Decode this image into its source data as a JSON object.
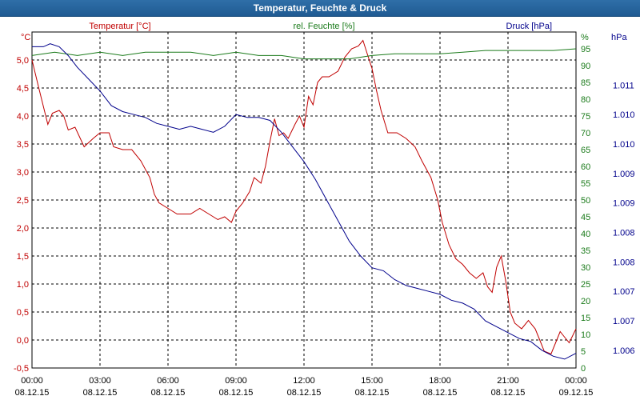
{
  "window": {
    "title": "Temperatur, Feuchte & Druck"
  },
  "colors": {
    "temperature": "#c00000",
    "humidity": "#1a7a1a",
    "pressure": "#00008b",
    "grid": "#000000"
  },
  "chart_data": {
    "type": "line",
    "title": "Temperatur, Feuchte & Druck",
    "legend": [
      {
        "key": "temperature",
        "label": "Temperatur [°C]"
      },
      {
        "key": "humidity",
        "label": "rel. Feuchte [%]"
      },
      {
        "key": "pressure",
        "label": "Druck [hPa]"
      }
    ],
    "axes": {
      "left": {
        "unit": "°C",
        "min": -0.5,
        "max": 5.5,
        "ticks": [
          "-0,5",
          "0,0",
          "0,5",
          "1,0",
          "1,5",
          "2,0",
          "2,5",
          "3,0",
          "3,5",
          "4,0",
          "4,5",
          "5,0"
        ],
        "tick_values": [
          -0.5,
          0,
          0.5,
          1,
          1.5,
          2,
          2.5,
          3,
          3.5,
          4,
          4.5,
          5
        ]
      },
      "right_humidity": {
        "unit": "%",
        "min": 0,
        "max": 100,
        "ticks": [
          "0",
          "5",
          "10",
          "15",
          "20",
          "25",
          "30",
          "35",
          "40",
          "45",
          "50",
          "55",
          "60",
          "65",
          "70",
          "75",
          "80",
          "85",
          "90",
          "95"
        ],
        "tick_values": [
          0,
          5,
          10,
          15,
          20,
          25,
          30,
          35,
          40,
          45,
          50,
          55,
          60,
          65,
          70,
          75,
          80,
          85,
          90,
          95
        ]
      },
      "right_pressure": {
        "unit": "hPa",
        "min": 1005.7,
        "max": 1011.4,
        "ticks": [
          "1.006",
          "1.007",
          "1.007",
          "1.008",
          "1.008",
          "1.009",
          "1.009",
          "1.010",
          "1.010",
          "1.011"
        ],
        "tick_values": [
          1006.0,
          1006.5,
          1007.0,
          1007.5,
          1008.0,
          1008.5,
          1009.0,
          1009.5,
          1010.0,
          1010.5
        ]
      },
      "x": {
        "min": 0,
        "max": 24,
        "ticks": [
          {
            "time": "00:00",
            "date": "08.12.15"
          },
          {
            "time": "03:00",
            "date": "08.12.15"
          },
          {
            "time": "06:00",
            "date": "08.12.15"
          },
          {
            "time": "09:00",
            "date": "08.12.15"
          },
          {
            "time": "12:00",
            "date": "08.12.15"
          },
          {
            "time": "15:00",
            "date": "08.12.15"
          },
          {
            "time": "18:00",
            "date": "08.12.15"
          },
          {
            "time": "21:00",
            "date": "08.12.15"
          },
          {
            "time": "00:00",
            "date": "09.12.15"
          }
        ]
      }
    },
    "series": [
      {
        "name": "Temperatur [°C]",
        "key": "temperature",
        "axis": "left",
        "points": [
          [
            0,
            5.0
          ],
          [
            0.3,
            4.5
          ],
          [
            0.7,
            3.85
          ],
          [
            0.9,
            4.05
          ],
          [
            1.2,
            4.1
          ],
          [
            1.4,
            4.0
          ],
          [
            1.6,
            3.75
          ],
          [
            1.9,
            3.8
          ],
          [
            2.3,
            3.45
          ],
          [
            2.7,
            3.6
          ],
          [
            3.0,
            3.7
          ],
          [
            3.4,
            3.7
          ],
          [
            3.6,
            3.45
          ],
          [
            4.0,
            3.4
          ],
          [
            4.4,
            3.4
          ],
          [
            4.8,
            3.2
          ],
          [
            5.2,
            2.9
          ],
          [
            5.4,
            2.6
          ],
          [
            5.6,
            2.45
          ],
          [
            6.0,
            2.35
          ],
          [
            6.4,
            2.25
          ],
          [
            7.0,
            2.25
          ],
          [
            7.4,
            2.35
          ],
          [
            7.8,
            2.25
          ],
          [
            8.2,
            2.15
          ],
          [
            8.5,
            2.2
          ],
          [
            8.8,
            2.1
          ],
          [
            9.0,
            2.3
          ],
          [
            9.3,
            2.45
          ],
          [
            9.6,
            2.65
          ],
          [
            9.8,
            2.9
          ],
          [
            10.1,
            2.8
          ],
          [
            10.3,
            3.1
          ],
          [
            10.5,
            3.55
          ],
          [
            10.7,
            3.95
          ],
          [
            10.9,
            3.65
          ],
          [
            11.1,
            3.7
          ],
          [
            11.3,
            3.6
          ],
          [
            11.6,
            3.85
          ],
          [
            11.8,
            4.0
          ],
          [
            12.0,
            3.8
          ],
          [
            12.2,
            4.35
          ],
          [
            12.4,
            4.2
          ],
          [
            12.6,
            4.6
          ],
          [
            12.8,
            4.7
          ],
          [
            13.1,
            4.7
          ],
          [
            13.5,
            4.8
          ],
          [
            13.8,
            5.05
          ],
          [
            14.1,
            5.2
          ],
          [
            14.4,
            5.25
          ],
          [
            14.6,
            5.35
          ],
          [
            14.8,
            5.1
          ],
          [
            15.0,
            4.85
          ],
          [
            15.2,
            4.45
          ],
          [
            15.4,
            4.1
          ],
          [
            15.7,
            3.7
          ],
          [
            16.1,
            3.7
          ],
          [
            16.5,
            3.6
          ],
          [
            16.9,
            3.45
          ],
          [
            17.2,
            3.2
          ],
          [
            17.6,
            2.9
          ],
          [
            17.9,
            2.5
          ],
          [
            18.1,
            2.1
          ],
          [
            18.4,
            1.7
          ],
          [
            18.7,
            1.45
          ],
          [
            19.0,
            1.35
          ],
          [
            19.3,
            1.2
          ],
          [
            19.6,
            1.1
          ],
          [
            19.9,
            1.2
          ],
          [
            20.1,
            0.95
          ],
          [
            20.3,
            0.85
          ],
          [
            20.5,
            1.3
          ],
          [
            20.7,
            1.5
          ],
          [
            20.9,
            1.05
          ],
          [
            21.1,
            0.5
          ],
          [
            21.3,
            0.3
          ],
          [
            21.6,
            0.2
          ],
          [
            21.9,
            0.35
          ],
          [
            22.2,
            0.2
          ],
          [
            22.4,
            0.0
          ],
          [
            22.6,
            -0.2
          ],
          [
            22.9,
            -0.25
          ],
          [
            23.1,
            -0.05
          ],
          [
            23.3,
            0.15
          ],
          [
            23.5,
            0.05
          ],
          [
            23.7,
            -0.05
          ],
          [
            24.0,
            0.2
          ]
        ]
      },
      {
        "name": "rel. Feuchte [%]",
        "key": "humidity",
        "axis": "right_humidity",
        "points": [
          [
            0,
            93
          ],
          [
            1,
            94
          ],
          [
            2,
            93
          ],
          [
            3,
            94
          ],
          [
            4,
            93
          ],
          [
            5,
            94
          ],
          [
            6,
            94
          ],
          [
            7,
            94
          ],
          [
            8,
            93
          ],
          [
            9,
            94
          ],
          [
            10,
            93
          ],
          [
            11,
            93
          ],
          [
            12,
            92
          ],
          [
            13,
            92
          ],
          [
            14,
            92
          ],
          [
            15,
            93
          ],
          [
            16,
            93.5
          ],
          [
            17,
            93.5
          ],
          [
            18,
            93.5
          ],
          [
            19,
            94
          ],
          [
            20,
            94.5
          ],
          [
            21,
            94.5
          ],
          [
            22,
            94.5
          ],
          [
            23,
            94.5
          ],
          [
            24,
            95
          ]
        ]
      },
      {
        "name": "Druck [hPa]",
        "key": "pressure",
        "axis": "right_pressure",
        "points": [
          [
            0,
            1011.15
          ],
          [
            0.5,
            1011.15
          ],
          [
            0.8,
            1011.2
          ],
          [
            1.2,
            1011.15
          ],
          [
            1.6,
            1011.0
          ],
          [
            2.0,
            1010.8
          ],
          [
            2.5,
            1010.6
          ],
          [
            3.0,
            1010.4
          ],
          [
            3.5,
            1010.15
          ],
          [
            4.0,
            1010.05
          ],
          [
            4.5,
            1010.0
          ],
          [
            5.0,
            1009.95
          ],
          [
            5.5,
            1009.85
          ],
          [
            6.0,
            1009.8
          ],
          [
            6.5,
            1009.75
          ],
          [
            7.0,
            1009.8
          ],
          [
            7.5,
            1009.75
          ],
          [
            8.0,
            1009.7
          ],
          [
            8.5,
            1009.8
          ],
          [
            9.0,
            1010.0
          ],
          [
            9.5,
            1009.95
          ],
          [
            10.0,
            1009.95
          ],
          [
            10.5,
            1009.9
          ],
          [
            11.0,
            1009.7
          ],
          [
            11.5,
            1009.45
          ],
          [
            12.0,
            1009.2
          ],
          [
            12.5,
            1008.9
          ],
          [
            13.0,
            1008.55
          ],
          [
            13.5,
            1008.2
          ],
          [
            14.0,
            1007.85
          ],
          [
            14.5,
            1007.6
          ],
          [
            15.0,
            1007.4
          ],
          [
            15.5,
            1007.35
          ],
          [
            16.0,
            1007.2
          ],
          [
            16.5,
            1007.1
          ],
          [
            17.0,
            1007.05
          ],
          [
            17.5,
            1007.0
          ],
          [
            18.0,
            1006.95
          ],
          [
            18.5,
            1006.85
          ],
          [
            19.0,
            1006.8
          ],
          [
            19.5,
            1006.7
          ],
          [
            20.0,
            1006.5
          ],
          [
            20.5,
            1006.4
          ],
          [
            21.0,
            1006.3
          ],
          [
            21.5,
            1006.2
          ],
          [
            22.0,
            1006.15
          ],
          [
            22.5,
            1006.0
          ],
          [
            23.0,
            1005.9
          ],
          [
            23.5,
            1005.85
          ],
          [
            24.0,
            1005.95
          ]
        ]
      }
    ]
  }
}
